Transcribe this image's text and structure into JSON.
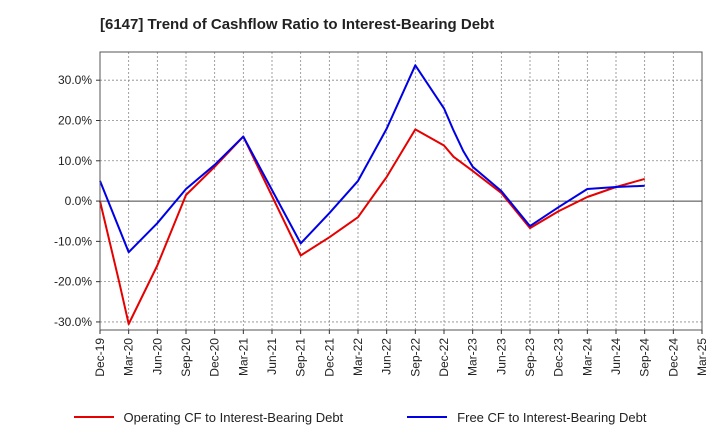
{
  "chart_data": {
    "type": "line",
    "title": "[6147]  Trend of Cashflow Ratio to Interest-Bearing Debt",
    "xlabel": "",
    "ylabel": "",
    "x_ticks": [
      "Dec-19",
      "Mar-20",
      "Jun-20",
      "Sep-20",
      "Dec-20",
      "Mar-21",
      "Jun-21",
      "Sep-21",
      "Dec-21",
      "Mar-22",
      "Jun-22",
      "Sep-22",
      "Dec-22",
      "Mar-23",
      "Jun-23",
      "Sep-23",
      "Dec-23",
      "Mar-24",
      "Jun-24",
      "Sep-24",
      "Dec-24",
      "Mar-25"
    ],
    "y_ticks": [
      "30.0%",
      "20.0%",
      "10.0%",
      "0.0%",
      "-10.0%",
      "-20.0%",
      "-30.0%"
    ],
    "ylim": [
      -32,
      37
    ],
    "y_unit": "%",
    "grid": true,
    "legend_position": "bottom",
    "series": [
      {
        "name": "Operating CF to Interest-Bearing Debt",
        "color": "#e60000",
        "points": [
          [
            "Dec-19",
            0.0
          ],
          [
            "Feb-20",
            -20.0
          ],
          [
            "Mar-20",
            -30.5
          ],
          [
            "Jun-20",
            -16.0
          ],
          [
            "Sep-20",
            1.5
          ],
          [
            "Dec-20",
            8.5
          ],
          [
            "Mar-21",
            16.0
          ],
          [
            "Sep-21",
            -13.5
          ],
          [
            "Dec-21",
            -9.0
          ],
          [
            "Mar-22",
            -4.0
          ],
          [
            "Jun-22",
            6.0
          ],
          [
            "Sep-22",
            17.8
          ],
          [
            "Dec-22",
            13.8
          ],
          [
            "Jan-23",
            11.0
          ],
          [
            "Mar-23",
            7.5
          ],
          [
            "Jun-23",
            2.0
          ],
          [
            "Sep-23",
            -6.7
          ],
          [
            "Dec-23",
            -2.5
          ],
          [
            "Mar-24",
            1.0
          ],
          [
            "Jun-24",
            3.5
          ],
          [
            "Sep-24",
            5.5
          ]
        ]
      },
      {
        "name": "Free CF to Interest-Bearing Debt",
        "color": "#0000e6",
        "points": [
          [
            "Dec-19",
            5.0
          ],
          [
            "Mar-20",
            -12.7
          ],
          [
            "Jun-20",
            -5.5
          ],
          [
            "Sep-20",
            3.0
          ],
          [
            "Dec-20",
            9.0
          ],
          [
            "Mar-21",
            16.0
          ],
          [
            "Sep-21",
            -10.5
          ],
          [
            "Dec-21",
            -3.0
          ],
          [
            "Mar-22",
            5.0
          ],
          [
            "Jun-22",
            18.0
          ],
          [
            "Sep-22",
            33.7
          ],
          [
            "Dec-22",
            23.0
          ],
          [
            "Jan-23",
            17.5
          ],
          [
            "Feb-23",
            12.5
          ],
          [
            "Mar-23",
            8.5
          ],
          [
            "Jun-23",
            2.5
          ],
          [
            "Sep-23",
            -6.2
          ],
          [
            "Dec-23",
            -1.5
          ],
          [
            "Mar-24",
            3.0
          ],
          [
            "Jun-24",
            3.5
          ],
          [
            "Sep-24",
            3.8
          ]
        ]
      }
    ]
  }
}
